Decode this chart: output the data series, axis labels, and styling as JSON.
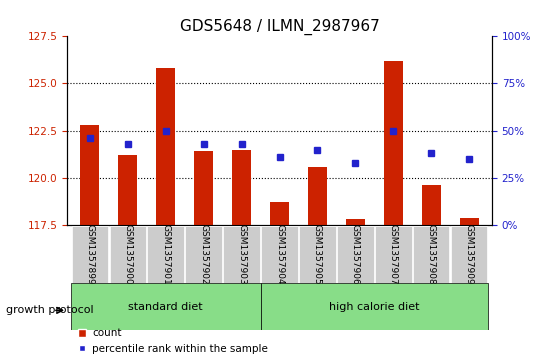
{
  "title": "GDS5648 / ILMN_2987967",
  "samples": [
    "GSM1357899",
    "GSM1357900",
    "GSM1357901",
    "GSM1357902",
    "GSM1357903",
    "GSM1357904",
    "GSM1357905",
    "GSM1357906",
    "GSM1357907",
    "GSM1357908",
    "GSM1357909"
  ],
  "counts": [
    122.8,
    121.2,
    125.8,
    121.4,
    121.5,
    118.7,
    120.6,
    117.8,
    126.2,
    119.6,
    117.9
  ],
  "percentiles": [
    46,
    43,
    50,
    43,
    43,
    36,
    40,
    33,
    50,
    38,
    35
  ],
  "ylim_left": [
    117.5,
    127.5
  ],
  "ylim_right": [
    0,
    100
  ],
  "yticks_left": [
    117.5,
    120.0,
    122.5,
    125.0,
    127.5
  ],
  "yticks_right": [
    0,
    25,
    50,
    75,
    100
  ],
  "ytick_labels_right": [
    "0%",
    "25%",
    "50%",
    "75%",
    "100%"
  ],
  "bar_color": "#cc2200",
  "dot_color": "#2222cc",
  "bar_width": 0.5,
  "group1_label": "standard diet",
  "group2_label": "high calorie diet",
  "group1_indices": [
    0,
    1,
    2,
    3,
    4
  ],
  "group2_indices": [
    5,
    6,
    7,
    8,
    9,
    10
  ],
  "group_label": "growth protocol",
  "group_bg_color": "#88dd88",
  "tick_bg_color": "#cccccc",
  "legend_count_label": "count",
  "legend_pct_label": "percentile rank within the sample",
  "grid_color": "#000000",
  "title_fontsize": 11,
  "axis_fontsize": 8.5,
  "tick_fontsize": 7.5
}
